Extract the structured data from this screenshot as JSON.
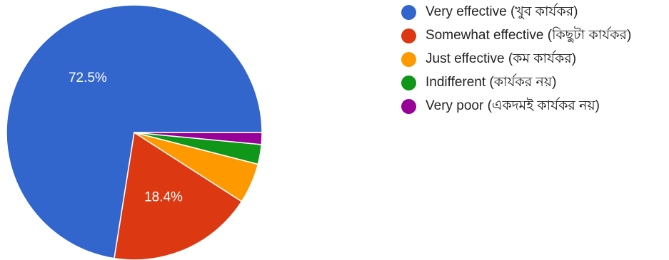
{
  "chart_data": {
    "type": "pie",
    "title": "",
    "legend_position": "right",
    "start_angle_deg": 0,
    "direction": "counterclockwise-from-3-oclock",
    "series": [
      {
        "name": "",
        "slices": [
          {
            "label": "Very effective (খুব কার্যকর)",
            "value": 72.5,
            "display_label": "72.5%",
            "color": "#3366cc"
          },
          {
            "label": "Somewhat effective (কিছুটা কার্যকর)",
            "value": 18.4,
            "display_label": "18.4%",
            "color": "#dc3912"
          },
          {
            "label": "Just effective (কম কার্যকর)",
            "value": 5.1,
            "display_label": "",
            "color": "#ff9900"
          },
          {
            "label": "Indifferent (কার্যকর নয়)",
            "value": 2.5,
            "display_label": "",
            "color": "#109618"
          },
          {
            "label": "Very poor (একদমই কার্যকর নয়)",
            "value": 1.5,
            "display_label": "",
            "color": "#990099"
          }
        ]
      }
    ]
  },
  "legend": {
    "items": [
      {
        "label": "Very effective (খুব কার্যকর)",
        "color": "#3366cc"
      },
      {
        "label": "Somewhat effective (কিছুটা কার্যকর)",
        "color": "#dc3912"
      },
      {
        "label": "Just effective (কম কার্যকর)",
        "color": "#ff9900"
      },
      {
        "label": "Indifferent (কার্যকর নয়)",
        "color": "#109618"
      },
      {
        "label": "Very poor (একদমই কার্যকর নয়)",
        "color": "#990099"
      }
    ]
  }
}
